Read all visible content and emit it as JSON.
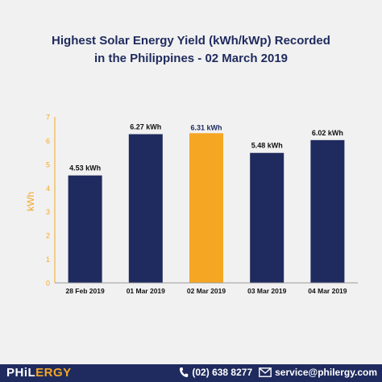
{
  "chart_data": {
    "type": "bar",
    "title_line1": "Highest Solar Energy Yield (kWh/kWp) Recorded",
    "title_line2": "in the Philippines - 02 March 2019",
    "ylabel": "kWh",
    "ylim": [
      0,
      7
    ],
    "yticks": [
      "0",
      "1",
      "2",
      "3",
      "4",
      "5",
      "6",
      "7"
    ],
    "categories": [
      "28 Feb 2019",
      "01 Mar 2019",
      "02 Mar 2019",
      "03 Mar 2019",
      "04 Mar 2019"
    ],
    "values": [
      4.53,
      6.27,
      6.31,
      5.48,
      6.02
    ],
    "data_labels": [
      "4.53 kWh",
      "6.27 kWh",
      "6.31 kWh",
      "5.48 kWh",
      "6.02 kWh"
    ],
    "highlight_index": 2,
    "colors": {
      "bar": "#1f2b5e",
      "highlight": "#f5a623",
      "axis": "#f5a623",
      "label_highlight": "#ffffff"
    }
  },
  "footer": {
    "brand_main": "PHiL",
    "brand_accent": "ERGY",
    "phone": "(02) 638 8277",
    "email": "service@philergy.com",
    "phone_icon": "phone-icon",
    "email_icon": "envelope-icon"
  }
}
